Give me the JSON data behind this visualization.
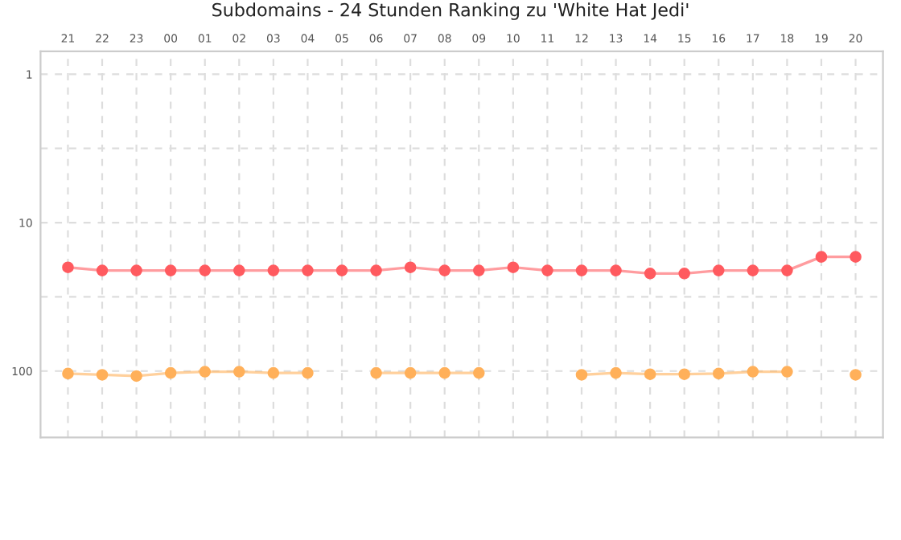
{
  "chart_data": {
    "type": "line",
    "title": "Subdomains - 24 Stunden Ranking zu 'White Hat Jedi'",
    "categories": [
      "21",
      "22",
      "23",
      "00",
      "01",
      "02",
      "03",
      "04",
      "05",
      "06",
      "07",
      "08",
      "09",
      "10",
      "11",
      "12",
      "13",
      "14",
      "15",
      "16",
      "17",
      "18",
      "19",
      "20"
    ],
    "series": [
      {
        "color": "#ff5a5f",
        "values": [
          20,
          21,
          21,
          21,
          21,
          21,
          21,
          21,
          21,
          21,
          20,
          21,
          21,
          20,
          21,
          21,
          21,
          22,
          22,
          21,
          21,
          21,
          17,
          17
        ]
      },
      {
        "color": "#ffb05a",
        "values": [
          104,
          106,
          108,
          103,
          101,
          101,
          103,
          103,
          null,
          103,
          103,
          103,
          103,
          null,
          null,
          106,
          103,
          105,
          105,
          104,
          101,
          101,
          null,
          106
        ]
      }
    ],
    "log": "y",
    "ylim": [
      280,
      0.7
    ],
    "yticks": [
      1,
      {
        "value": 3.16,
        "label": null
      },
      10,
      {
        "value": 31.6,
        "label": null
      },
      100
    ],
    "grid": true,
    "marker": "circle",
    "line_style": "solid",
    "legend": false
  }
}
